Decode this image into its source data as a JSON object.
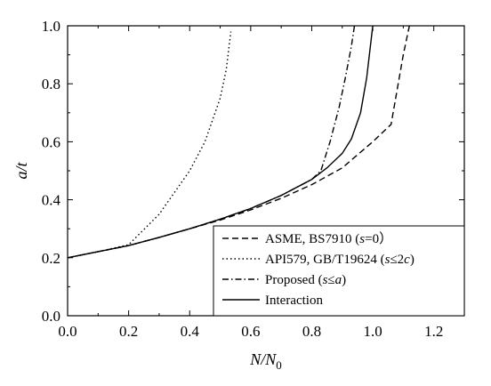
{
  "chart_data": {
    "type": "line",
    "xlabel": {
      "main": "N",
      "sub": "0",
      "prefix": "N/"
    },
    "ylabel": {
      "main": "a/t"
    },
    "xlim": [
      0.0,
      1.3
    ],
    "ylim": [
      0.0,
      1.0
    ],
    "xticks": [
      "0.0",
      "0.2",
      "0.4",
      "0.6",
      "0.8",
      "1.0",
      "1.2"
    ],
    "yticks": [
      "0.0",
      "0.2",
      "0.4",
      "0.6",
      "0.8",
      "1.0"
    ],
    "legend_position": "bottom-right",
    "series": [
      {
        "name_parts": [
          [
            "ASME, BS7910 (",
            false
          ],
          [
            "s",
            true
          ],
          [
            "=0）",
            false
          ]
        ],
        "style": "dashed",
        "x": [
          0.0,
          0.1,
          0.2,
          0.3,
          0.4,
          0.5,
          0.6,
          0.7,
          0.8,
          0.9,
          1.0,
          1.06,
          1.08,
          1.1,
          1.12
        ],
        "y": [
          0.2,
          0.221,
          0.242,
          0.27,
          0.3,
          0.33,
          0.365,
          0.405,
          0.452,
          0.51,
          0.6,
          0.66,
          0.78,
          0.9,
          1.0
        ]
      },
      {
        "name_parts": [
          [
            "API579, GB/T19624 (",
            false
          ],
          [
            "s",
            true
          ],
          [
            "≤2",
            false
          ],
          [
            "c",
            true
          ],
          [
            ")",
            false
          ]
        ],
        "style": "dotted",
        "x": [
          0.0,
          0.1,
          0.2,
          0.3,
          0.4,
          0.45,
          0.5,
          0.52,
          0.535
        ],
        "y": [
          0.2,
          0.221,
          0.245,
          0.35,
          0.5,
          0.6,
          0.75,
          0.85,
          0.98
        ]
      },
      {
        "name_parts": [
          [
            "Proposed (",
            false
          ],
          [
            "s",
            true
          ],
          [
            "≤",
            false
          ],
          [
            "a",
            true
          ],
          [
            ")",
            false
          ]
        ],
        "style": "dashdot",
        "x": [
          0.0,
          0.1,
          0.2,
          0.3,
          0.4,
          0.5,
          0.6,
          0.7,
          0.8,
          0.83,
          0.86,
          0.89,
          0.91,
          0.93,
          0.94
        ],
        "y": [
          0.2,
          0.221,
          0.242,
          0.27,
          0.3,
          0.333,
          0.37,
          0.415,
          0.47,
          0.5,
          0.6,
          0.72,
          0.82,
          0.93,
          1.0
        ]
      },
      {
        "name_parts": [
          [
            "Interaction",
            false
          ]
        ],
        "style": "solid",
        "x": [
          0.0,
          0.1,
          0.2,
          0.3,
          0.4,
          0.5,
          0.6,
          0.7,
          0.8,
          0.85,
          0.9,
          0.93,
          0.96,
          0.98,
          1.0
        ],
        "y": [
          0.2,
          0.221,
          0.242,
          0.27,
          0.3,
          0.333,
          0.37,
          0.415,
          0.47,
          0.51,
          0.56,
          0.61,
          0.7,
          0.82,
          1.0
        ]
      }
    ]
  }
}
